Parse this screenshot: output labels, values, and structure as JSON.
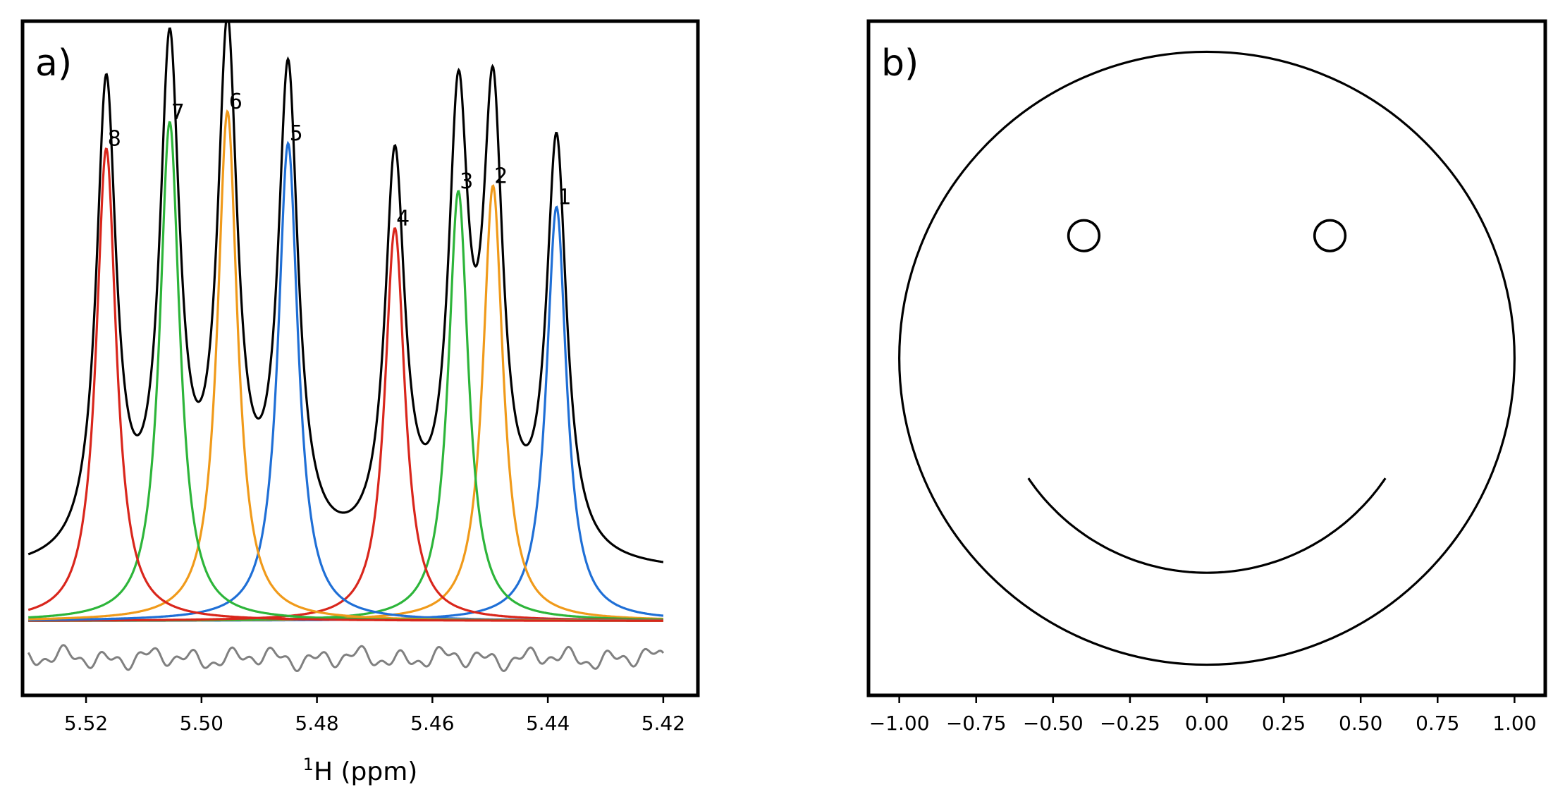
{
  "chart_data": [
    {
      "type": "line",
      "panel_label": "a)",
      "title": "",
      "xlabel_sup": "1",
      "xlabel": "H (ppm)",
      "ylabel": "",
      "xlim": [
        5.531,
        5.414
      ],
      "ylim": [
        -0.14,
        1.13
      ],
      "x_ticks": [
        5.52,
        5.5,
        5.48,
        5.46,
        5.44,
        5.42
      ],
      "x_tick_labels": [
        "5.52",
        "5.50",
        "5.48",
        "5.46",
        "5.44",
        "5.42"
      ],
      "y_ticks_visible": false,
      "grid": false,
      "x_range": [
        5.53,
        5.42
      ],
      "linewidth_ppm": 0.0021,
      "peaks": [
        {
          "label": "1",
          "center": 5.4385,
          "height": 0.78,
          "color": "#1f6fd6"
        },
        {
          "label": "2",
          "center": 5.4495,
          "height": 0.82,
          "color": "#f09a1a"
        },
        {
          "label": "3",
          "center": 5.4555,
          "height": 0.81,
          "color": "#2db53a"
        },
        {
          "label": "4",
          "center": 5.4665,
          "height": 0.74,
          "color": "#d9261c"
        },
        {
          "label": "5",
          "center": 5.485,
          "height": 0.9,
          "color": "#1f6fd6"
        },
        {
          "label": "6",
          "center": 5.4955,
          "height": 0.96,
          "color": "#f09a1a"
        },
        {
          "label": "7",
          "center": 5.5055,
          "height": 0.94,
          "color": "#2db53a"
        },
        {
          "label": "8",
          "center": 5.5165,
          "height": 0.89,
          "color": "#d9261c"
        }
      ],
      "sum_offset": 0.09,
      "residual_offset": -0.07,
      "sum_color": "#000000",
      "residual_color": "#808080"
    },
    {
      "type": "line",
      "panel_label": "b)",
      "title": "",
      "xlabel": "",
      "ylabel": "",
      "xlim": [
        -1.1,
        1.1
      ],
      "ylim": [
        -1.1,
        1.1
      ],
      "x_ticks": [
        -1.0,
        -0.75,
        -0.5,
        -0.25,
        0.0,
        0.25,
        0.5,
        0.75,
        1.0
      ],
      "x_tick_labels": [
        "−1.00",
        "−0.75",
        "−0.50",
        "−0.25",
        "0.00",
        "0.25",
        "0.50",
        "0.75",
        "1.00"
      ],
      "y_ticks_visible": false,
      "grid": false,
      "face": {
        "outline": {
          "cx": 0.0,
          "cy": 0.0,
          "r": 1.0
        },
        "eyes": [
          {
            "cx": -0.4,
            "cy": 0.4,
            "r": 0.05
          },
          {
            "cx": 0.4,
            "cy": 0.4,
            "r": 0.05
          }
        ],
        "mouth": {
          "cx": 0.0,
          "cy": 0.0,
          "r": 0.7,
          "start_deg": 214,
          "end_deg": 326
        }
      },
      "line_color": "#000000"
    }
  ]
}
